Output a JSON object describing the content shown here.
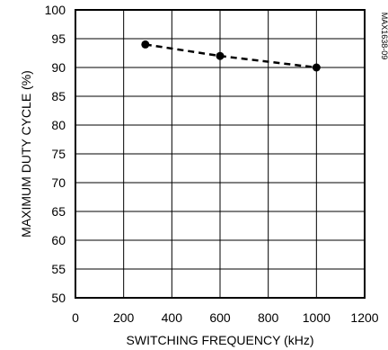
{
  "chart_data": {
    "type": "line",
    "title": "",
    "xlabel": "SWITCHING FREQUENCY (kHz)",
    "ylabel": "MAXIMUM DUTY CYCLE (%)",
    "xlim": [
      0,
      1200
    ],
    "ylim": [
      50,
      100
    ],
    "xticks": [
      0,
      200,
      400,
      600,
      800,
      1000,
      1200
    ],
    "yticks": [
      50,
      55,
      60,
      65,
      70,
      75,
      80,
      85,
      90,
      95,
      100
    ],
    "grid": true,
    "legend": "none",
    "series": [
      {
        "x": [
          290,
          600,
          1000
        ],
        "y": [
          94,
          92,
          90
        ],
        "line_style": "dashed",
        "marker": "filled-circle",
        "color": "#000000"
      }
    ],
    "annotation": "MAX1638-09"
  }
}
